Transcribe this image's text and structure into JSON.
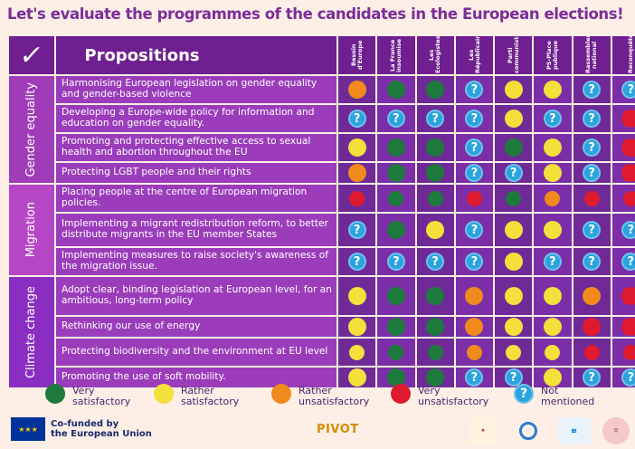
{
  "title": "Let's evaluate the programmes of the candidates in the European elections!",
  "header": {
    "check_icon": "checkmark-icon",
    "propositions_label": "Propositions",
    "parties": [
      "Besoin d'Europe",
      "La France insoumise",
      "Les Ecologistes",
      "Les Républicains",
      "Parti communiste",
      "PS-Place publique",
      "Rassemblement national",
      "Reconquête"
    ]
  },
  "groups": [
    {
      "label": "Gender equality"
    },
    {
      "label": "Migration"
    },
    {
      "label": "Climate change"
    }
  ],
  "rows": [
    {
      "text": "Harmonising European legislation on gender equality and gender-based violence",
      "ratings": [
        "orange",
        "green",
        "green",
        "blue",
        "yellow",
        "yellow",
        "blue",
        "blue"
      ]
    },
    {
      "text": "Developing a Europe-wide policy for information and education on gender equality.",
      "ratings": [
        "blue",
        "blue",
        "blue",
        "blue",
        "yellow",
        "blue",
        "blue",
        "red"
      ]
    },
    {
      "text": "Promoting and protecting effective access to sexual health and abortion throughout the EU",
      "ratings": [
        "yellow",
        "green",
        "green",
        "blue",
        "green",
        "yellow",
        "blue",
        "red"
      ]
    },
    {
      "text": "Protecting LGBT people and their rights",
      "ratings": [
        "orange",
        "green",
        "green",
        "blue",
        "blue",
        "yellow",
        "blue",
        "red"
      ]
    },
    {
      "text": "Placing people at the centre of European migration policies.",
      "ratings": [
        "red",
        "green",
        "green",
        "red",
        "green",
        "orange",
        "red",
        "red"
      ]
    },
    {
      "text": "Implementing a migrant redistribution reform, to better distribute migrants in the EU member States",
      "ratings": [
        "blue",
        "green",
        "yellow",
        "blue",
        "yellow",
        "yellow",
        "blue",
        "blue"
      ]
    },
    {
      "text": "Implementing measures to raise society's awareness of the migration issue.",
      "ratings": [
        "blue",
        "blue",
        "blue",
        "blue",
        "yellow",
        "blue",
        "blue",
        "blue"
      ]
    },
    {
      "text": "Adopt clear, binding legislation at European level, for an ambitious, long-term policy",
      "ratings": [
        "yellow",
        "green",
        "green",
        "orange",
        "yellow",
        "yellow",
        "orange",
        "red"
      ]
    },
    {
      "text": "Rethinking our use of energy",
      "ratings": [
        "yellow",
        "green",
        "green",
        "orange",
        "yellow",
        "yellow",
        "red",
        "red"
      ]
    },
    {
      "text": "Protecting biodiversity and the environment at EU level",
      "ratings": [
        "yellow",
        "green",
        "green",
        "orange",
        "yellow",
        "yellow",
        "red",
        "red"
      ]
    },
    {
      "text": "Promoting the use of soft mobility.",
      "ratings": [
        "yellow",
        "green",
        "green",
        "blue",
        "blue",
        "yellow",
        "blue",
        "blue"
      ]
    }
  ],
  "legend": [
    {
      "color": "green",
      "label": "Very\nsatisfactory"
    },
    {
      "color": "yellow",
      "label": "Rather\nsatisfactory"
    },
    {
      "color": "orange",
      "label": "Rather\nunsatisfactory"
    },
    {
      "color": "red",
      "label": "Very\nunsatisfactory"
    },
    {
      "color": "blue",
      "label": "Not\nmentioned"
    }
  ],
  "footer": {
    "eu_text_line1": "Co-funded by",
    "eu_text_line2": "the European Union",
    "pivot": "PIVOT"
  },
  "colors": {
    "green": "#1e7a3c",
    "yellow": "#f4e03a",
    "orange": "#f08a1d",
    "red": "#e01a2e",
    "blue": "#2aa3df",
    "purple": "#9b3dbb"
  }
}
